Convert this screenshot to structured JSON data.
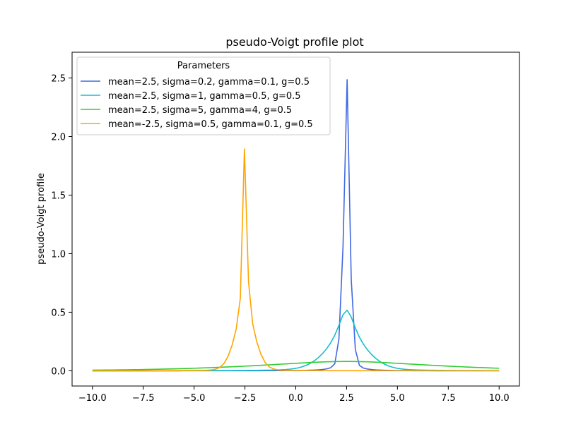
{
  "chart_data": {
    "type": "line",
    "title": "pseudo-Voigt profile plot",
    "xlabel": "",
    "ylabel": "pseudo-Voigt profile",
    "xlim": [
      -11.0,
      11.0
    ],
    "ylim": [
      -0.13,
      2.72
    ],
    "xticks": [
      -10.0,
      -7.5,
      -5.0,
      -2.5,
      0.0,
      2.5,
      5.0,
      7.5,
      10.0
    ],
    "xtick_labels": [
      "−10.0",
      "−7.5",
      "−5.0",
      "−2.5",
      "0.0",
      "2.5",
      "5.0",
      "7.5",
      "10.0"
    ],
    "yticks": [
      0.0,
      0.5,
      1.0,
      1.5,
      2.0,
      2.5
    ],
    "ytick_labels": [
      "0.0",
      "0.5",
      "1.0",
      "1.5",
      "2.0",
      "2.5"
    ],
    "grid": false,
    "legend": {
      "title": "Parameters",
      "position": "top-left"
    },
    "x_range": [
      -10,
      10
    ],
    "series": [
      {
        "name": "mean=2.5, sigma=0.2, gamma=0.1, g=0.5",
        "mean": 2.5,
        "sigma": 0.2,
        "gamma": 0.1,
        "g": 0.5,
        "color": "#4169e1"
      },
      {
        "name": "mean=2.5, sigma=1, gamma=0.5, g=0.5",
        "mean": 2.5,
        "sigma": 1,
        "gamma": 0.5,
        "g": 0.5,
        "color": "#17becf"
      },
      {
        "name": "mean=2.5, sigma=5, gamma=4, g=0.5",
        "mean": 2.5,
        "sigma": 5,
        "gamma": 4,
        "g": 0.5,
        "color": "#32cd32"
      },
      {
        "name": "mean=-2.5, sigma=0.5, gamma=0.1, g=0.5",
        "mean": -2.5,
        "sigma": 0.5,
        "gamma": 0.1,
        "g": 0.5,
        "color": "#ffa500"
      }
    ]
  }
}
